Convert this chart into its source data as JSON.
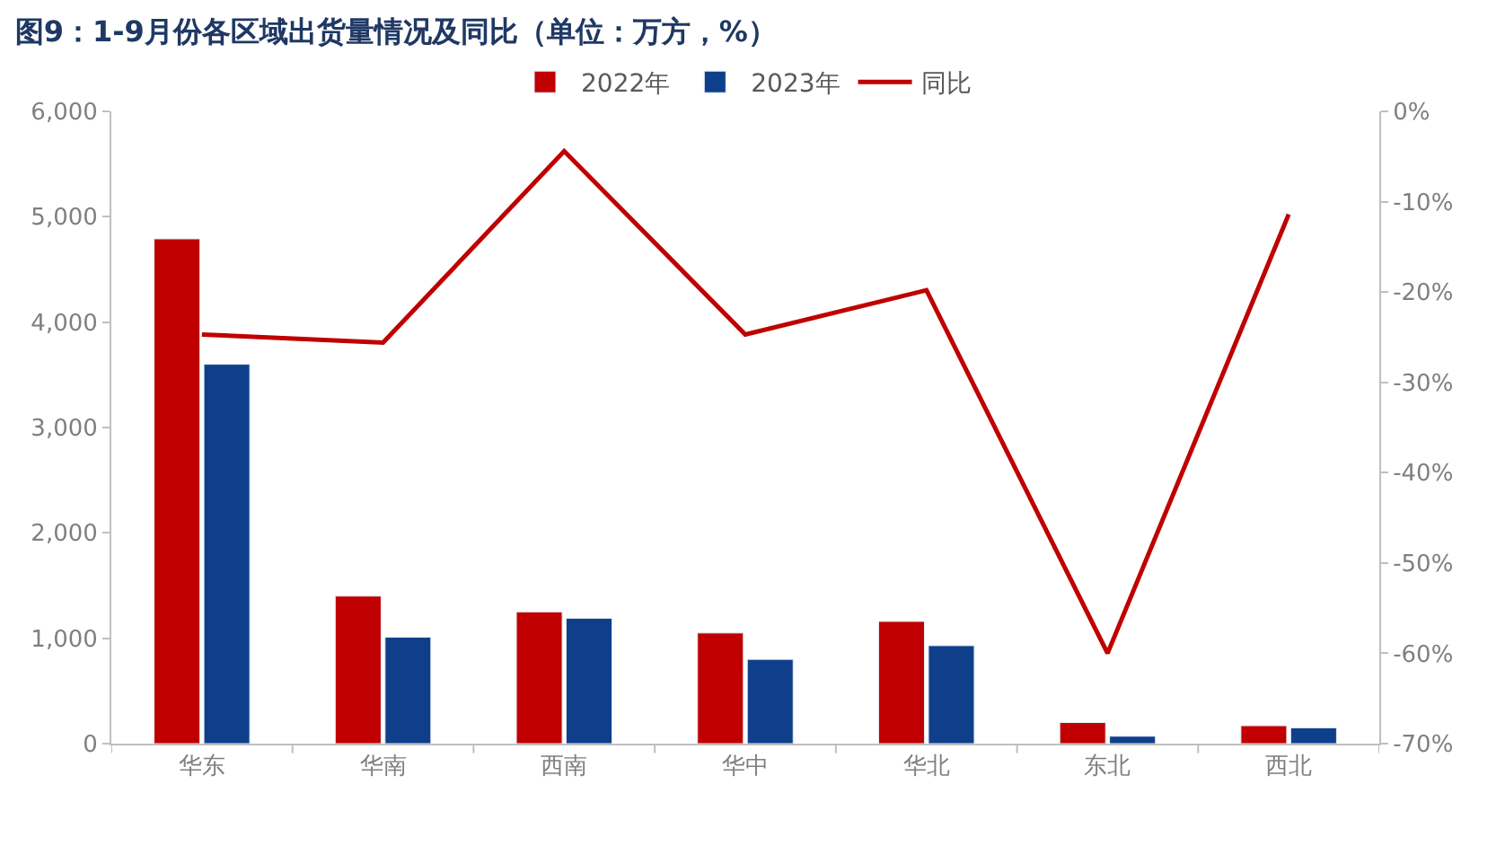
{
  "chart_data": {
    "type": "bar",
    "title": "图9：1-9月份各区域出货量情况及同比（单位：万方，%）",
    "categories": [
      "华东",
      "华南",
      "西南",
      "华中",
      "华北",
      "东北",
      "西北"
    ],
    "series": [
      {
        "name": "2022年",
        "color": "#c00000",
        "values": [
          4790,
          1400,
          1250,
          1050,
          1160,
          200,
          170
        ]
      },
      {
        "name": "2023年",
        "color": "#0f3f8a",
        "values": [
          3600,
          1010,
          1190,
          800,
          930,
          70,
          150
        ]
      },
      {
        "name": "同比",
        "type": "line",
        "axis": "y2",
        "color": "#c00000",
        "marker": "none",
        "line_style": "solid",
        "values": [
          -24.7,
          -25.6,
          -4.4,
          -24.7,
          -19.8,
          -60.0,
          -11.4
        ]
      }
    ],
    "ylim": [
      0,
      6000
    ],
    "yticks": [
      {
        "value": 0,
        "label": "0"
      },
      {
        "value": 1000,
        "label": "1,000"
      },
      {
        "value": 2000,
        "label": "2,000"
      },
      {
        "value": 3000,
        "label": "3,000"
      },
      {
        "value": 4000,
        "label": "4,000"
      },
      {
        "value": 5000,
        "label": "5,000"
      },
      {
        "value": 6000,
        "label": "6,000"
      }
    ],
    "y2lim": [
      -70,
      0
    ],
    "y2ticks": [
      {
        "value": 0,
        "label": "0%"
      },
      {
        "value": -10,
        "label": "-10%"
      },
      {
        "value": -20,
        "label": "-20%"
      },
      {
        "value": -30,
        "label": "-30%"
      },
      {
        "value": -40,
        "label": "-40%"
      },
      {
        "value": -50,
        "label": "-50%"
      },
      {
        "value": -60,
        "label": "-60%"
      },
      {
        "value": -70,
        "label": "-70%"
      }
    ],
    "grid": false,
    "legend": "top"
  }
}
